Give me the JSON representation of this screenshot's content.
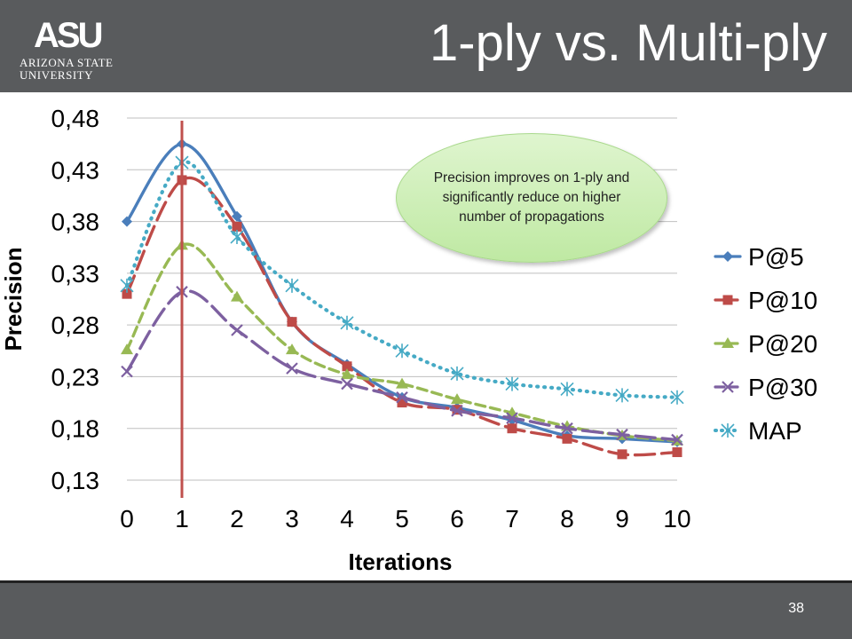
{
  "slide": {
    "title": "1-ply vs. Multi-ply",
    "page_number": "38",
    "logo": {
      "mark": "ASU",
      "line1": "ARIZONA STATE",
      "line2": "UNIVERSITY"
    },
    "callout": "Precision improves on 1-ply and significantly reduce on higher number of propagations"
  },
  "colors": {
    "header_bg": "#595b5d",
    "marker_line": "#c0504d"
  },
  "chart_data": {
    "type": "line",
    "xlabel": "Iterations",
    "ylabel": "Precision",
    "x": [
      0,
      1,
      2,
      3,
      4,
      5,
      6,
      7,
      8,
      9,
      10
    ],
    "x_tick_labels": [
      "0",
      "1",
      "2",
      "3",
      "4",
      "5",
      "6",
      "7",
      "8",
      "9",
      "10"
    ],
    "ylim": [
      0.13,
      0.48
    ],
    "y_ticks": [
      0.13,
      0.18,
      0.23,
      0.28,
      0.33,
      0.38,
      0.43,
      0.48
    ],
    "y_tick_labels": [
      "0,13",
      "0,18",
      "0,23",
      "0,28",
      "0,33",
      "0,38",
      "0,43",
      "0,48"
    ],
    "grid": "horizontal",
    "legend_position": "right",
    "vertical_marker_x": 1,
    "series": [
      {
        "name": "P@5",
        "color": "#4a7ebb",
        "dash": "solid",
        "marker": "diamond",
        "values": [
          0.38,
          0.455,
          0.385,
          0.283,
          0.242,
          0.21,
          0.2,
          0.188,
          0.173,
          0.17,
          0.167
        ]
      },
      {
        "name": "P@10",
        "color": "#be4b48",
        "dash": "long-dash",
        "marker": "square",
        "values": [
          0.31,
          0.42,
          0.375,
          0.283,
          0.24,
          0.205,
          0.198,
          0.18,
          0.17,
          0.155,
          0.157
        ]
      },
      {
        "name": "P@20",
        "color": "#98b954",
        "dash": "dash",
        "marker": "triangle",
        "values": [
          0.256,
          0.357,
          0.307,
          0.256,
          0.232,
          0.223,
          0.208,
          0.195,
          0.182,
          0.173,
          0.168
        ]
      },
      {
        "name": "P@30",
        "color": "#7d60a0",
        "dash": "long-dash",
        "marker": "x",
        "values": [
          0.235,
          0.312,
          0.275,
          0.238,
          0.223,
          0.21,
          0.197,
          0.19,
          0.18,
          0.174,
          0.169
        ]
      },
      {
        "name": "MAP",
        "color": "#46aac5",
        "dash": "dot",
        "marker": "asterisk",
        "values": [
          0.318,
          0.437,
          0.365,
          0.318,
          0.282,
          0.255,
          0.233,
          0.223,
          0.218,
          0.212,
          0.21
        ]
      }
    ]
  }
}
